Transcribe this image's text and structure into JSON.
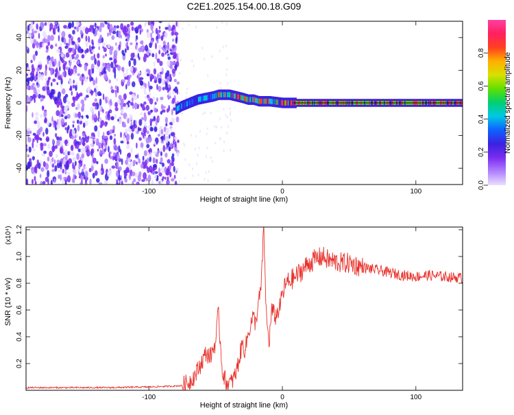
{
  "title": "C2E1.2025.154.00.18.G09",
  "colors": {
    "snr_line": "#e8302a",
    "median_line": "#000000",
    "spectrogram_scale": [
      "#e8e0ff",
      "#b080ff",
      "#7a2cf0",
      "#3a22e0",
      "#1060ff",
      "#00c8e6",
      "#00d070",
      "#60e000",
      "#d8e000",
      "#ffb000",
      "#ff4020",
      "#ff2060",
      "#ff40a0"
    ]
  },
  "chart_data": [
    {
      "type": "heatmap",
      "xlabel": "Height of straight line (km)",
      "ylabel": "Frequency (Hz)",
      "xlim": [
        -192,
        135
      ],
      "ylim": [
        -50,
        50
      ],
      "xticks": [
        -100,
        0,
        100
      ],
      "yticks": [
        -40,
        -20,
        0,
        20,
        40
      ],
      "colorbar": {
        "label": "Normalized spectral amplitude",
        "range": [
          0,
          1
        ],
        "ticks": [
          0.0,
          0.2,
          0.4,
          0.6,
          0.8
        ],
        "tick_labels": [
          "0.0",
          "0.2",
          "0.4",
          "0.6",
          "0.8"
        ]
      },
      "ridge_frequency": {
        "x": [
          -80,
          -76,
          -70,
          -64,
          -58,
          -52,
          -48,
          -44,
          -40,
          -35,
          -30,
          -26,
          -22,
          -18,
          -14,
          -10,
          -5,
          0,
          5,
          10,
          30,
          60,
          90,
          120,
          135
        ],
        "y": [
          -4,
          -2,
          0,
          2,
          3,
          4,
          5,
          5,
          5,
          4,
          3,
          2,
          2,
          1,
          1,
          1,
          0.5,
          0,
          0,
          0,
          0,
          0,
          0,
          0,
          0
        ]
      }
    },
    {
      "type": "line",
      "xlabel": "Height of straight line (km)",
      "ylabel": "SNR (10 * v/v)",
      "y_multiplier": "(x10⁴)",
      "xlim": [
        -192,
        135
      ],
      "ylim": [
        0.0,
        1.22
      ],
      "xticks": [
        -100,
        0,
        100
      ],
      "yticks": [
        0.2,
        0.4,
        0.6,
        0.8,
        1.0,
        1.2
      ],
      "ytick_labels": [
        "0.2",
        "0.4",
        "0.6",
        "0.8",
        "1.0",
        "1.2"
      ],
      "series": [
        {
          "x": [
            -192,
            -160,
            -130,
            -100,
            -85,
            -75,
            -70,
            -65,
            -60,
            -57,
            -54,
            -50,
            -48,
            -45,
            -42,
            -38,
            -35,
            -32,
            -30,
            -28,
            -25,
            -22,
            -20,
            -18,
            -16,
            -14,
            -12,
            -10,
            -8,
            -5,
            -2,
            0,
            3,
            6,
            10,
            15,
            20,
            25,
            30,
            35,
            40,
            45,
            50,
            60,
            70,
            80,
            90,
            100,
            110,
            120,
            135
          ],
          "y": [
            0.02,
            0.02,
            0.02,
            0.025,
            0.03,
            0.035,
            0.06,
            0.12,
            0.22,
            0.28,
            0.25,
            0.36,
            0.58,
            0.15,
            0.05,
            0.06,
            0.12,
            0.25,
            0.35,
            0.3,
            0.45,
            0.55,
            0.5,
            0.65,
            0.75,
            1.22,
            0.55,
            0.35,
            0.6,
            0.55,
            0.62,
            0.72,
            0.8,
            0.82,
            0.85,
            0.9,
            0.95,
            0.98,
            1.0,
            0.97,
            0.96,
            0.95,
            0.95,
            0.92,
            0.9,
            0.88,
            0.86,
            0.85,
            0.86,
            0.85,
            0.84
          ]
        }
      ]
    }
  ]
}
